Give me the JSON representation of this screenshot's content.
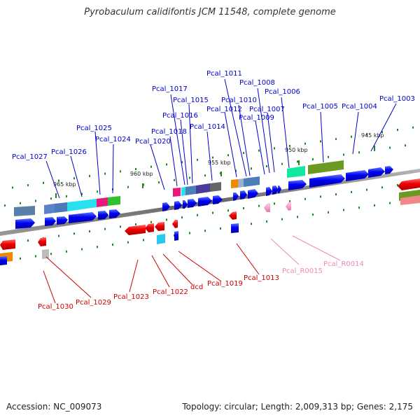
{
  "title": "Pyrobaculum calidifontis JCM 11548, complete genome",
  "footer": {
    "accession": "Accession: NC_009073",
    "topology": "Topology: circular; Length: 2,009,313 bp; Genes: 2,175"
  },
  "scale_labels": [
    "965 kbp",
    "960 kbp",
    "955 kbp",
    "950 kbp",
    "945 kbp"
  ],
  "forward_gene_labels": [
    "Pcal_1027",
    "Pcal_1026",
    "Pcal_1025",
    "Pcal_1024",
    "Pcal_1020",
    "Pcal_1018",
    "Pcal_1017",
    "Pcal_1016",
    "Pcal_1015",
    "Pcal_1014",
    "Pcal_1012",
    "Pcal_1011",
    "Pcal_1010",
    "Pcal_1009",
    "Pcal_1008",
    "Pcal_1007",
    "Pcal_1006",
    "Pcal_1005",
    "Pcal_1004",
    "Pcal_1003"
  ],
  "reverse_gene_labels": [
    "Pcal_1030",
    "Pcal_1029",
    "Pcal_1023",
    "Pcal_1022",
    "dcd",
    "Pcal_1019",
    "Pcal_1013"
  ],
  "rna_labels": [
    "Pcal_R0015",
    "Pcal_R0014"
  ],
  "colors": {
    "forward_gene": "#0000ee",
    "reverse_gene": "#ee0000",
    "rna": "#f4a0c8",
    "forward_label": "#0000cc",
    "reverse_label": "#cc0000",
    "rna_label": "#ee88bb",
    "tick": "#1a8a1a",
    "backbone": "#777777"
  }
}
